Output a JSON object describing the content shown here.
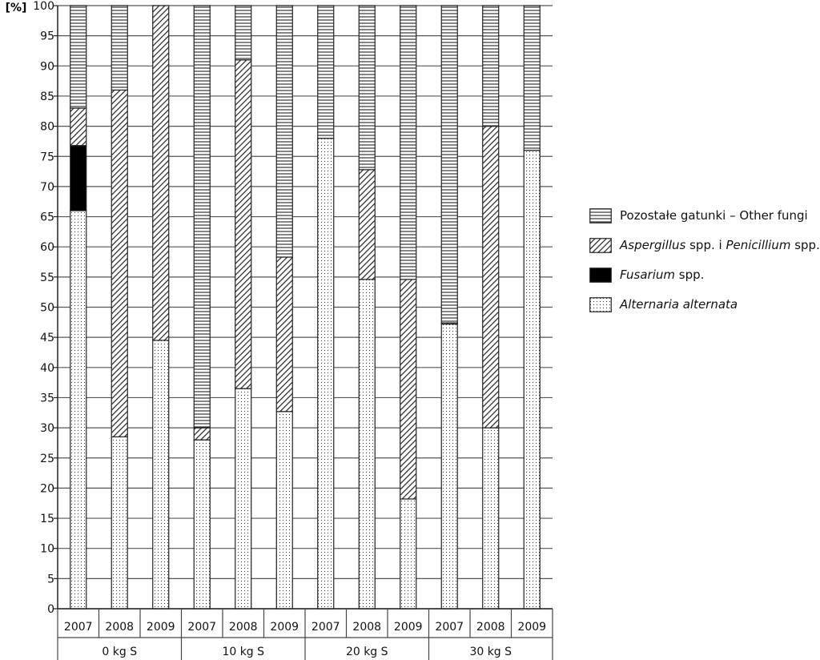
{
  "chart_data": {
    "type": "bar",
    "stacked": true,
    "ylabel": "[%]",
    "ylim": [
      0,
      100
    ],
    "yticks": [
      0,
      5,
      10,
      15,
      20,
      25,
      30,
      35,
      40,
      45,
      50,
      55,
      60,
      65,
      70,
      75,
      80,
      85,
      90,
      95,
      100
    ],
    "grid": true,
    "legend_position": "right",
    "groups": [
      {
        "label": "0 kg S",
        "categories": [
          "2007",
          "2008",
          "2009"
        ]
      },
      {
        "label": "10 kg S",
        "categories": [
          "2007",
          "2008",
          "2009"
        ]
      },
      {
        "label": "20 kg S",
        "categories": [
          "2007",
          "2008",
          "2009"
        ]
      },
      {
        "label": "30 kg S",
        "categories": [
          "2007",
          "2008",
          "2009"
        ]
      }
    ],
    "series": [
      {
        "key": "alternaria",
        "name": "Alternaria alternata",
        "pattern": "dots",
        "values": [
          66,
          28.5,
          44.5,
          28,
          36.5,
          32.7,
          78,
          54.6,
          18.2,
          47.2,
          30,
          76
        ]
      },
      {
        "key": "fusarium",
        "name": "Fusarium spp.",
        "pattern": "solid",
        "values": [
          10.8,
          0,
          0,
          0,
          0,
          0,
          0,
          0,
          0,
          0,
          0,
          0
        ]
      },
      {
        "key": "aspergillus",
        "name": "Aspergillus spp. i Penicillium spp.",
        "pattern": "diagonal",
        "values": [
          6.2,
          57.5,
          55.5,
          2,
          54.5,
          25.6,
          0,
          18.2,
          36.4,
          0.2,
          50,
          0
        ]
      },
      {
        "key": "other",
        "name": "Pozostałe gatunki – Other fungi",
        "pattern": "horizontal",
        "values": [
          17,
          14,
          0,
          70,
          9,
          41.7,
          22,
          27.2,
          45.4,
          52.6,
          20,
          24
        ]
      }
    ]
  },
  "legend": [
    {
      "key": "other",
      "pattern": "horizontal",
      "parts": [
        {
          "text": "Pozostałe gatunki – Other fungi",
          "italic": false
        }
      ]
    },
    {
      "key": "aspergillus",
      "pattern": "diagonal",
      "parts": [
        {
          "text": "Aspergillus",
          "italic": true
        },
        {
          "text": " spp. i ",
          "italic": false
        },
        {
          "text": "Penicillium",
          "italic": true
        },
        {
          "text": " spp.",
          "italic": false
        }
      ]
    },
    {
      "key": "fusarium",
      "pattern": "solid",
      "parts": [
        {
          "text": "Fusarium",
          "italic": true
        },
        {
          "text": " spp.",
          "italic": false
        }
      ]
    },
    {
      "key": "alternaria",
      "pattern": "dots",
      "parts": [
        {
          "text": "Alternaria alternata",
          "italic": true
        }
      ]
    }
  ]
}
